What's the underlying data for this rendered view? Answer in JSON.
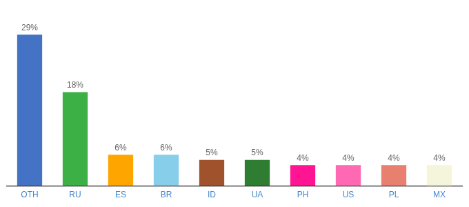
{
  "chart_data": {
    "type": "bar",
    "categories": [
      "OTH",
      "RU",
      "ES",
      "BR",
      "ID",
      "UA",
      "PH",
      "US",
      "PL",
      "MX"
    ],
    "values": [
      29,
      18,
      6,
      6,
      5,
      5,
      4,
      4,
      4,
      4
    ],
    "value_labels": [
      "29%",
      "18%",
      "6%",
      "6%",
      "5%",
      "5%",
      "4%",
      "4%",
      "4%",
      "4%"
    ],
    "colors": [
      "#4472C4",
      "#3CB044",
      "#FFA500",
      "#87CEEB",
      "#A0522D",
      "#2E7D32",
      "#FF1493",
      "#FF69B4",
      "#E88070",
      "#F5F5DC"
    ],
    "ylim": [
      0,
      33
    ],
    "data_labels": true,
    "tick_labels": "x",
    "grid": false
  }
}
